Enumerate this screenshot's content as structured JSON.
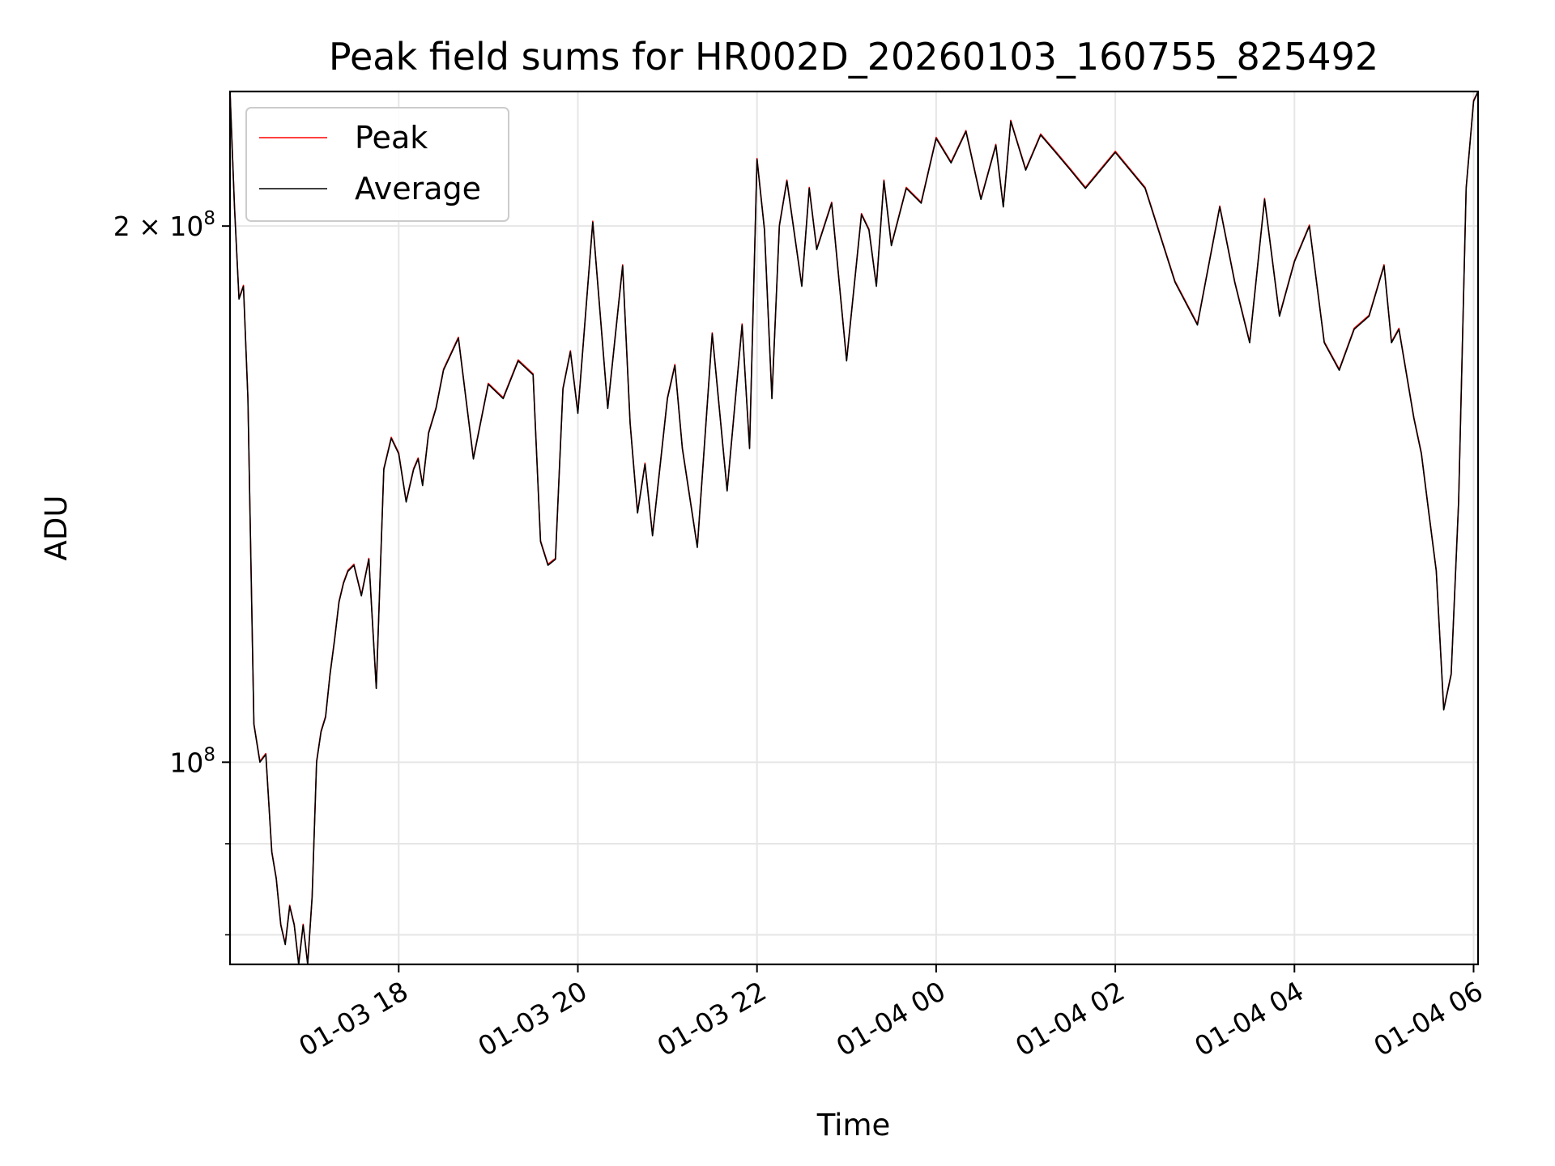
{
  "chart_data": {
    "type": "line",
    "title": "Peak field sums for HR002D_20260103_160755_825492",
    "xlabel": "Time",
    "ylabel": "ADU",
    "y_scale": "log",
    "grid": true,
    "legend_position": "top-left",
    "xlim": [
      "2026-01-03 16:07",
      "2026-01-04 06:03"
    ],
    "ylim": [
      77000000,
      238000000
    ],
    "x_ticks": [
      {
        "t": "2026-01-03 18:00",
        "label": "01-03 18"
      },
      {
        "t": "2026-01-03 20:00",
        "label": "01-03 20"
      },
      {
        "t": "2026-01-03 22:00",
        "label": "01-03 22"
      },
      {
        "t": "2026-01-04 00:00",
        "label": "01-04 00"
      },
      {
        "t": "2026-01-04 02:00",
        "label": "01-04 02"
      },
      {
        "t": "2026-01-04 04:00",
        "label": "01-04 04"
      },
      {
        "t": "2026-01-04 06:00",
        "label": "01-04 06"
      }
    ],
    "y_ticks_major": [
      {
        "value": 100000000,
        "base": "10",
        "exp": "8",
        "coef": ""
      },
      {
        "value": 200000000,
        "base": "10",
        "exp": "8",
        "coef": "2"
      }
    ],
    "y_ticks_minor": [
      80000000,
      90000000
    ],
    "series": [
      {
        "name": "Peak",
        "color": "#ff0000"
      },
      {
        "name": "Average",
        "color": "#000000"
      }
    ],
    "x": [
      "2026-01-03 16:07",
      "2026-01-03 16:10",
      "2026-01-03 16:13",
      "2026-01-03 16:16",
      "2026-01-03 16:19",
      "2026-01-03 16:23",
      "2026-01-03 16:27",
      "2026-01-03 16:31",
      "2026-01-03 16:35",
      "2026-01-03 16:38",
      "2026-01-03 16:41",
      "2026-01-03 16:44",
      "2026-01-03 16:47",
      "2026-01-03 16:50",
      "2026-01-03 16:53",
      "2026-01-03 16:56",
      "2026-01-03 16:59",
      "2026-01-03 17:02",
      "2026-01-03 17:05",
      "2026-01-03 17:08",
      "2026-01-03 17:11",
      "2026-01-03 17:14",
      "2026-01-03 17:17",
      "2026-01-03 17:20",
      "2026-01-03 17:23",
      "2026-01-03 17:26",
      "2026-01-03 17:30",
      "2026-01-03 17:35",
      "2026-01-03 17:40",
      "2026-01-03 17:45",
      "2026-01-03 17:50",
      "2026-01-03 17:55",
      "2026-01-03 18:00",
      "2026-01-03 18:05",
      "2026-01-03 18:10",
      "2026-01-03 18:13",
      "2026-01-03 18:16",
      "2026-01-03 18:20",
      "2026-01-03 18:25",
      "2026-01-03 18:30",
      "2026-01-03 18:40",
      "2026-01-03 18:50",
      "2026-01-03 19:00",
      "2026-01-03 19:10",
      "2026-01-03 19:20",
      "2026-01-03 19:30",
      "2026-01-03 19:35",
      "2026-01-03 19:40",
      "2026-01-03 19:45",
      "2026-01-03 19:50",
      "2026-01-03 19:55",
      "2026-01-03 20:00",
      "2026-01-03 20:10",
      "2026-01-03 20:20",
      "2026-01-03 20:30",
      "2026-01-03 20:35",
      "2026-01-03 20:40",
      "2026-01-03 20:45",
      "2026-01-03 20:50",
      "2026-01-03 21:00",
      "2026-01-03 21:05",
      "2026-01-03 21:10",
      "2026-01-03 21:20",
      "2026-01-03 21:30",
      "2026-01-03 21:40",
      "2026-01-03 21:50",
      "2026-01-03 21:55",
      "2026-01-03 22:00",
      "2026-01-03 22:05",
      "2026-01-03 22:10",
      "2026-01-03 22:15",
      "2026-01-03 22:20",
      "2026-01-03 22:30",
      "2026-01-03 22:35",
      "2026-01-03 22:40",
      "2026-01-03 22:50",
      "2026-01-03 23:00",
      "2026-01-03 23:10",
      "2026-01-03 23:15",
      "2026-01-03 23:20",
      "2026-01-03 23:25",
      "2026-01-03 23:30",
      "2026-01-03 23:40",
      "2026-01-03 23:50",
      "2026-01-04 00:00",
      "2026-01-04 00:10",
      "2026-01-04 00:20",
      "2026-01-04 00:30",
      "2026-01-04 00:40",
      "2026-01-04 00:45",
      "2026-01-04 00:50",
      "2026-01-04 01:00",
      "2026-01-04 01:10",
      "2026-01-04 01:20",
      "2026-01-04 01:30",
      "2026-01-04 01:40",
      "2026-01-04 02:00",
      "2026-01-04 02:20",
      "2026-01-04 02:40",
      "2026-01-04 02:55",
      "2026-01-04 03:10",
      "2026-01-04 03:20",
      "2026-01-04 03:30",
      "2026-01-04 03:40",
      "2026-01-04 03:50",
      "2026-01-04 04:00",
      "2026-01-04 04:10",
      "2026-01-04 04:20",
      "2026-01-04 04:30",
      "2026-01-04 04:40",
      "2026-01-04 04:50",
      "2026-01-04 05:00",
      "2026-01-04 05:05",
      "2026-01-04 05:10",
      "2026-01-04 05:20",
      "2026-01-04 05:25",
      "2026-01-04 05:30",
      "2026-01-04 05:35",
      "2026-01-04 05:40",
      "2026-01-04 05:45",
      "2026-01-04 05:50",
      "2026-01-04 05:55",
      "2026-01-04 06:00",
      "2026-01-04 06:03"
    ],
    "values": [
      238000000,
      205000000,
      182000000,
      185000000,
      160000000,
      105000000,
      100000000,
      101000000,
      89000000,
      86000000,
      81000000,
      79000000,
      83000000,
      81000000,
      77000000,
      81000000,
      77000000,
      84000000,
      100000000,
      104000000,
      106000000,
      112000000,
      117000000,
      123000000,
      126000000,
      128000000,
      129000000,
      124000000,
      130000000,
      110000000,
      146000000,
      152000000,
      149000000,
      140000000,
      146000000,
      148000000,
      143000000,
      153000000,
      158000000,
      166000000,
      173000000,
      148000000,
      163000000,
      160000000,
      168000000,
      165000000,
      133000000,
      129000000,
      130000000,
      162000000,
      170000000,
      157000000,
      201000000,
      158000000,
      190000000,
      155000000,
      138000000,
      147000000,
      134000000,
      160000000,
      167000000,
      150000000,
      132000000,
      174000000,
      142000000,
      176000000,
      150000000,
      218000000,
      199000000,
      160000000,
      200000000,
      212000000,
      185000000,
      210000000,
      194000000,
      206000000,
      168000000,
      203000000,
      199000000,
      185000000,
      212000000,
      195000000,
      210000000,
      206000000,
      224000000,
      217000000,
      226000000,
      207000000,
      222000000,
      205000000,
      229000000,
      215000000,
      225000000,
      220000000,
      215000000,
      210000000,
      220000000,
      210000000,
      186000000,
      176000000,
      205000000,
      186000000,
      172000000,
      207000000,
      178000000,
      191000000,
      200000000,
      172000000,
      166000000,
      175000000,
      178000000,
      190000000,
      172000000,
      175000000,
      156000000,
      149000000,
      138000000,
      128000000,
      107000000,
      112000000,
      140000000,
      210000000,
      235000000,
      238000000
    ]
  }
}
